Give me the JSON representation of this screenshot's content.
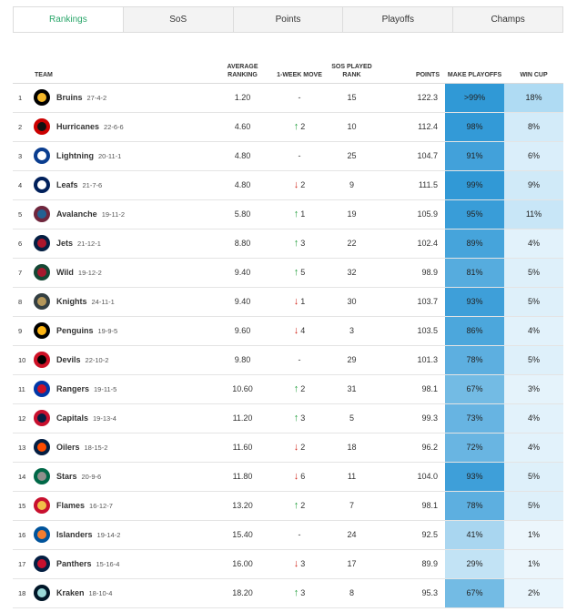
{
  "tabs": [
    {
      "label": "Rankings",
      "active": true
    },
    {
      "label": "SoS",
      "active": false
    },
    {
      "label": "Points",
      "active": false
    },
    {
      "label": "Playoffs",
      "active": false
    },
    {
      "label": "Champs",
      "active": false
    }
  ],
  "headers": {
    "team": "TEAM",
    "avg": "AVERAGE RANKING",
    "move": "1-WEEK MOVE",
    "sos": "SOS PLAYED RANK",
    "points": "POINTS",
    "playoffs": "MAKE PLAYOFFS",
    "cup": "WIN CUP"
  },
  "rows": [
    {
      "rank": "1",
      "name": "Bruins",
      "record": "27-4-2",
      "avg": "1.20",
      "dir": "none",
      "move": "-",
      "sos": "15",
      "points": "122.3",
      "playoffs": ">99%",
      "playoffs_v": 99.5,
      "cup": "18%",
      "cup_v": 18,
      "logo_bg": "#000000",
      "logo_fg": "#f4b82a"
    },
    {
      "rank": "2",
      "name": "Hurricanes",
      "record": "22-6-6",
      "avg": "4.60",
      "dir": "up",
      "move": "2",
      "sos": "10",
      "points": "112.4",
      "playoffs": "98%",
      "playoffs_v": 98,
      "cup": "8%",
      "cup_v": 8,
      "logo_bg": "#cc0000",
      "logo_fg": "#111111"
    },
    {
      "rank": "3",
      "name": "Lightning",
      "record": "20-11-1",
      "avg": "4.80",
      "dir": "none",
      "move": "-",
      "sos": "25",
      "points": "104.7",
      "playoffs": "91%",
      "playoffs_v": 91,
      "cup": "6%",
      "cup_v": 6,
      "logo_bg": "#0a3d8f",
      "logo_fg": "#ffffff"
    },
    {
      "rank": "4",
      "name": "Leafs",
      "record": "21-7-6",
      "avg": "4.80",
      "dir": "down",
      "move": "2",
      "sos": "9",
      "points": "111.5",
      "playoffs": "99%",
      "playoffs_v": 99,
      "cup": "9%",
      "cup_v": 9,
      "logo_bg": "#00205b",
      "logo_fg": "#ffffff"
    },
    {
      "rank": "5",
      "name": "Avalanche",
      "record": "19-11-2",
      "avg": "5.80",
      "dir": "up",
      "move": "1",
      "sos": "19",
      "points": "105.9",
      "playoffs": "95%",
      "playoffs_v": 95,
      "cup": "11%",
      "cup_v": 11,
      "logo_bg": "#6f263d",
      "logo_fg": "#236192"
    },
    {
      "rank": "6",
      "name": "Jets",
      "record": "21-12-1",
      "avg": "8.80",
      "dir": "up",
      "move": "3",
      "sos": "22",
      "points": "102.4",
      "playoffs": "89%",
      "playoffs_v": 89,
      "cup": "4%",
      "cup_v": 4,
      "logo_bg": "#041e42",
      "logo_fg": "#ac162c"
    },
    {
      "rank": "7",
      "name": "Wild",
      "record": "19-12-2",
      "avg": "9.40",
      "dir": "up",
      "move": "5",
      "sos": "32",
      "points": "98.9",
      "playoffs": "81%",
      "playoffs_v": 81,
      "cup": "5%",
      "cup_v": 5,
      "logo_bg": "#154734",
      "logo_fg": "#a6192e"
    },
    {
      "rank": "8",
      "name": "Knights",
      "record": "24-11-1",
      "avg": "9.40",
      "dir": "down",
      "move": "1",
      "sos": "30",
      "points": "103.7",
      "playoffs": "93%",
      "playoffs_v": 93,
      "cup": "5%",
      "cup_v": 5,
      "logo_bg": "#333f42",
      "logo_fg": "#b4975a"
    },
    {
      "rank": "9",
      "name": "Penguins",
      "record": "19-9-5",
      "avg": "9.60",
      "dir": "down",
      "move": "4",
      "sos": "3",
      "points": "103.5",
      "playoffs": "86%",
      "playoffs_v": 86,
      "cup": "4%",
      "cup_v": 4,
      "logo_bg": "#000000",
      "logo_fg": "#fcb514"
    },
    {
      "rank": "10",
      "name": "Devils",
      "record": "22-10-2",
      "avg": "9.80",
      "dir": "none",
      "move": "-",
      "sos": "29",
      "points": "101.3",
      "playoffs": "78%",
      "playoffs_v": 78,
      "cup": "5%",
      "cup_v": 5,
      "logo_bg": "#ce1126",
      "logo_fg": "#000000"
    },
    {
      "rank": "11",
      "name": "Rangers",
      "record": "19-11-5",
      "avg": "10.60",
      "dir": "up",
      "move": "2",
      "sos": "31",
      "points": "98.1",
      "playoffs": "67%",
      "playoffs_v": 67,
      "cup": "3%",
      "cup_v": 3,
      "logo_bg": "#0038a8",
      "logo_fg": "#ce1126"
    },
    {
      "rank": "12",
      "name": "Capitals",
      "record": "19-13-4",
      "avg": "11.20",
      "dir": "up",
      "move": "3",
      "sos": "5",
      "points": "99.3",
      "playoffs": "73%",
      "playoffs_v": 73,
      "cup": "4%",
      "cup_v": 4,
      "logo_bg": "#c8102e",
      "logo_fg": "#041e42"
    },
    {
      "rank": "13",
      "name": "Oilers",
      "record": "18-15-2",
      "avg": "11.60",
      "dir": "down",
      "move": "2",
      "sos": "18",
      "points": "96.2",
      "playoffs": "72%",
      "playoffs_v": 72,
      "cup": "4%",
      "cup_v": 4,
      "logo_bg": "#041e42",
      "logo_fg": "#ff4c00"
    },
    {
      "rank": "14",
      "name": "Stars",
      "record": "20-9-6",
      "avg": "11.80",
      "dir": "down",
      "move": "6",
      "sos": "11",
      "points": "104.0",
      "playoffs": "93%",
      "playoffs_v": 93,
      "cup": "5%",
      "cup_v": 5,
      "logo_bg": "#006847",
      "logo_fg": "#8f8f8c"
    },
    {
      "rank": "15",
      "name": "Flames",
      "record": "16-12-7",
      "avg": "13.20",
      "dir": "up",
      "move": "2",
      "sos": "7",
      "points": "98.1",
      "playoffs": "78%",
      "playoffs_v": 78,
      "cup": "5%",
      "cup_v": 5,
      "logo_bg": "#c8102e",
      "logo_fg": "#f1be48"
    },
    {
      "rank": "16",
      "name": "Islanders",
      "record": "19-14-2",
      "avg": "15.40",
      "dir": "none",
      "move": "-",
      "sos": "24",
      "points": "92.5",
      "playoffs": "41%",
      "playoffs_v": 41,
      "cup": "1%",
      "cup_v": 1,
      "logo_bg": "#00539b",
      "logo_fg": "#f47d30"
    },
    {
      "rank": "17",
      "name": "Panthers",
      "record": "15-16-4",
      "avg": "16.00",
      "dir": "down",
      "move": "3",
      "sos": "17",
      "points": "89.9",
      "playoffs": "29%",
      "playoffs_v": 29,
      "cup": "1%",
      "cup_v": 1,
      "logo_bg": "#041e42",
      "logo_fg": "#c8102e"
    },
    {
      "rank": "18",
      "name": "Kraken",
      "record": "18-10-4",
      "avg": "18.20",
      "dir": "up",
      "move": "3",
      "sos": "8",
      "points": "95.3",
      "playoffs": "67%",
      "playoffs_v": 67,
      "cup": "2%",
      "cup_v": 2,
      "logo_bg": "#001628",
      "logo_fg": "#99d9d9"
    }
  ]
}
